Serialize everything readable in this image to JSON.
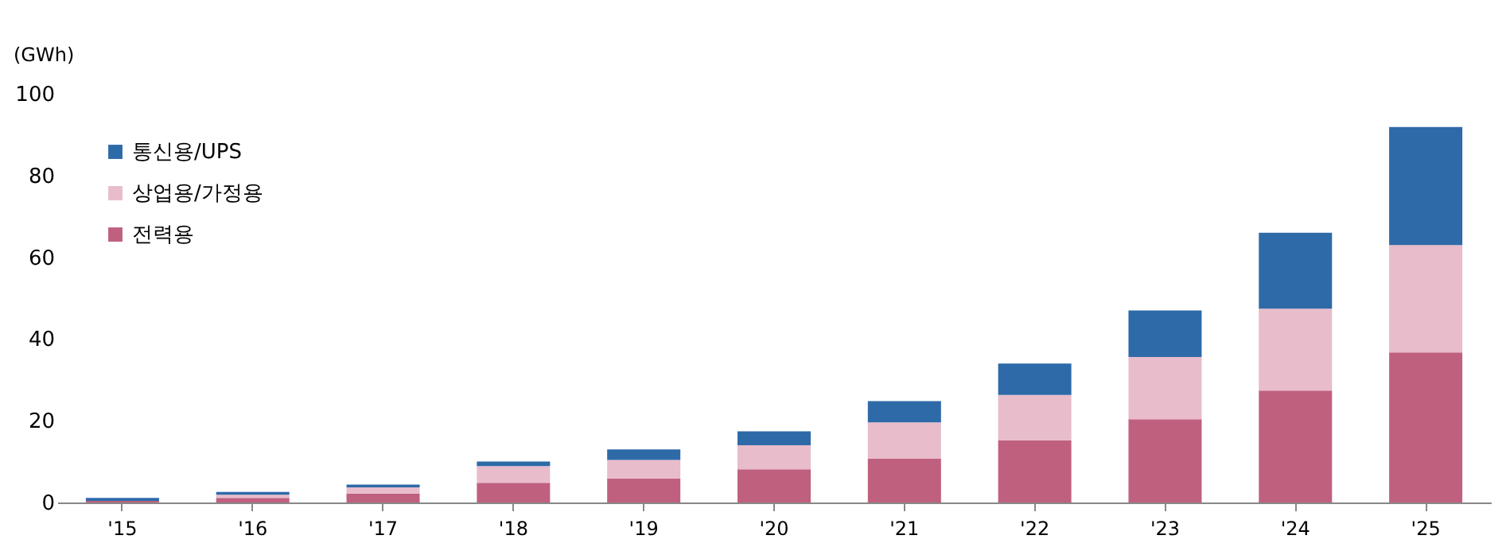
{
  "chart_data": {
    "type": "bar",
    "stacked": true,
    "ylabel": "(GWh)",
    "categories": [
      "'15",
      "'16",
      "'17",
      "'18",
      "'19",
      "'20",
      "'21",
      "'22",
      "'23",
      "'24",
      "'25"
    ],
    "series": [
      {
        "name": "전력용",
        "color": "#c0607f",
        "values": [
          0.4,
          1.1,
          2.2,
          4.8,
          5.9,
          8.1,
          10.7,
          15.2,
          20.4,
          27.4,
          36.7
        ]
      },
      {
        "name": "상업용/가정용",
        "color": "#e8bccb",
        "values": [
          null,
          0.8,
          1.5,
          4.1,
          4.5,
          5.9,
          8.9,
          11.1,
          15.2,
          20.0,
          26.3
        ]
      },
      {
        "name": "통신용/UPS",
        "color": "#2e6aa8",
        "values": [
          0.7,
          0.7,
          0.7,
          1.1,
          2.6,
          3.4,
          5.2,
          7.7,
          11.4,
          18.6,
          28.9
        ]
      }
    ],
    "ylim": [
      0,
      100
    ],
    "yticks": [
      0,
      20,
      40,
      60,
      80,
      100
    ],
    "grid": false,
    "legend": "top left"
  }
}
